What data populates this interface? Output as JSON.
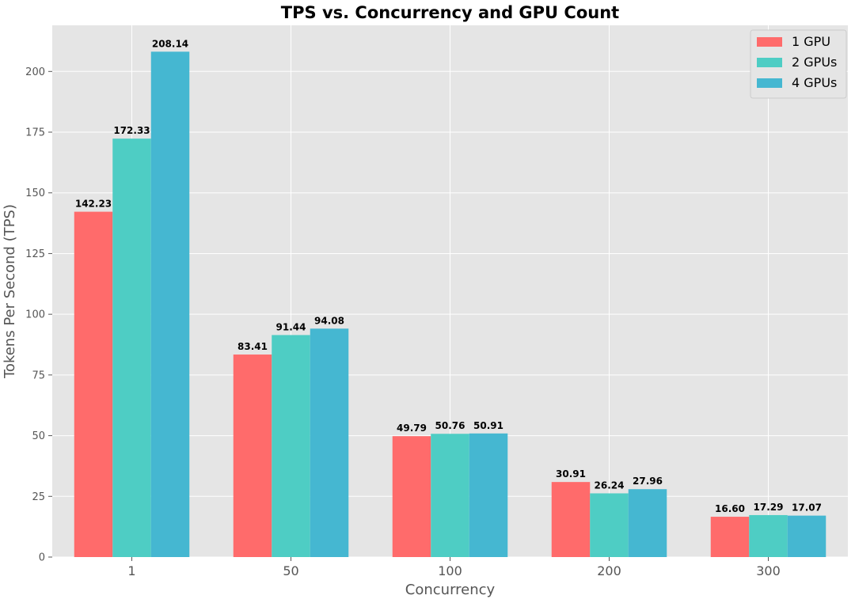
{
  "chart_data": {
    "type": "bar",
    "title": "TPS vs. Concurrency and GPU Count",
    "xlabel": "Concurrency",
    "ylabel": "Tokens Per Second (TPS)",
    "categories": [
      "1",
      "50",
      "100",
      "200",
      "300"
    ],
    "ylim": [
      0,
      219
    ],
    "yticks": [
      0,
      25,
      50,
      75,
      100,
      125,
      150,
      175,
      200
    ],
    "grid": true,
    "legend_position": "top-right",
    "series": [
      {
        "name": "1 GPU",
        "color": "#ff6b6b",
        "values": [
          142.23,
          83.41,
          49.79,
          30.91,
          16.6
        ],
        "labels": [
          "142.23",
          "83.41",
          "49.79",
          "30.91",
          "16.60"
        ]
      },
      {
        "name": "2 GPUs",
        "color": "#4ecdc4",
        "values": [
          172.33,
          91.44,
          50.76,
          26.24,
          17.29
        ],
        "labels": [
          "172.33",
          "91.44",
          "50.76",
          "26.24",
          "17.29"
        ]
      },
      {
        "name": "4 GPUs",
        "color": "#45b7d1",
        "values": [
          208.14,
          94.08,
          50.91,
          27.96,
          17.07
        ],
        "labels": [
          "208.14",
          "94.08",
          "50.91",
          "27.96",
          "17.07"
        ]
      }
    ],
    "background": "#e5e5e5",
    "grid_color": "#ffffff"
  }
}
